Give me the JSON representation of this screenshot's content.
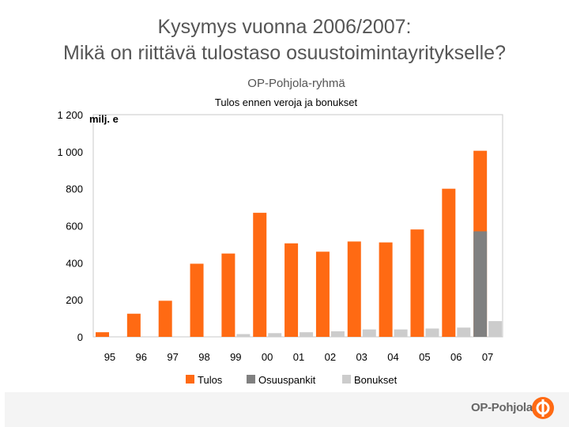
{
  "slide": {
    "title_line1": "Kysymys vuonna 2006/2007:",
    "title_line2": "Mikä on riittävä tulostaso osuustoimintayritykselle?",
    "group_name": "OP-Pohjola-ryhmä",
    "logo_text": "OP-Pohjola"
  },
  "colors": {
    "tulos": "#ff6a13",
    "osuuspankit": "#808080",
    "bonukset": "#cccccc",
    "logo": "#ff6a13"
  },
  "chart_data": {
    "type": "bar",
    "title": "Tulos ennen veroja ja bonukset",
    "unit_label": "milj. e",
    "categories": [
      "95",
      "96",
      "97",
      "98",
      "99",
      "00",
      "01",
      "02",
      "03",
      "04",
      "05",
      "06",
      "07"
    ],
    "series": [
      {
        "name": "Tulos",
        "values": [
          25,
          125,
          195,
          395,
          450,
          670,
          505,
          460,
          515,
          510,
          580,
          800,
          1005
        ]
      },
      {
        "name": "Osuuspankit",
        "values": [
          null,
          null,
          null,
          null,
          null,
          null,
          null,
          null,
          null,
          null,
          null,
          null,
          570
        ]
      },
      {
        "name": "Bonukset",
        "values": [
          null,
          null,
          null,
          null,
          15,
          20,
          25,
          30,
          40,
          40,
          45,
          50,
          85
        ]
      }
    ],
    "yticks": [
      0,
      200,
      400,
      600,
      800,
      1000,
      1200
    ],
    "ytick_labels": [
      "0",
      "200",
      "400",
      "600",
      "800",
      "1 000",
      "1 200"
    ],
    "ylim": [
      0,
      1200
    ],
    "grid": false,
    "legend_position": "bottom"
  }
}
